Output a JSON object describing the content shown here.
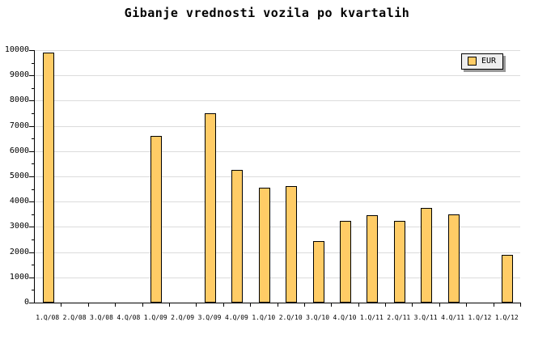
{
  "chart_data": {
    "type": "bar",
    "title": "Gibanje vrednosti vozila po kvartalih",
    "categories": [
      "1.Q/08",
      "2.Q/08",
      "3.Q/08",
      "4.Q/08",
      "1.Q/09",
      "2.Q/09",
      "3.Q/09",
      "4.Q/09",
      "1.Q/10",
      "2.Q/10",
      "3.Q/10",
      "4.Q/10",
      "1.Q/11",
      "2.Q/11",
      "3.Q/11",
      "4.Q/11",
      "1.Q/12",
      "1.Q/12"
    ],
    "series": [
      {
        "name": "EUR",
        "values": [
          9900,
          0,
          0,
          0,
          6600,
          0,
          7500,
          5250,
          4550,
          4600,
          2450,
          3250,
          3450,
          3250,
          3750,
          3500,
          0,
          1900
        ]
      }
    ],
    "xlabel": "",
    "ylabel": "",
    "ylim": [
      0,
      10000
    ],
    "y_major_step": 1000,
    "y_minor_step": 500,
    "grid": "horizontal-major-only",
    "legend": {
      "label": "EUR",
      "position": "top-right"
    }
  },
  "colors": {
    "bar_fill": "#FFCC66",
    "bar_border": "#000000",
    "grid": "#DCDCDC",
    "axis": "#000000",
    "background": "#FFFFFF",
    "legend_bg": "#EEEEEE",
    "legend_shadow": "#999999",
    "text": "#000000"
  }
}
